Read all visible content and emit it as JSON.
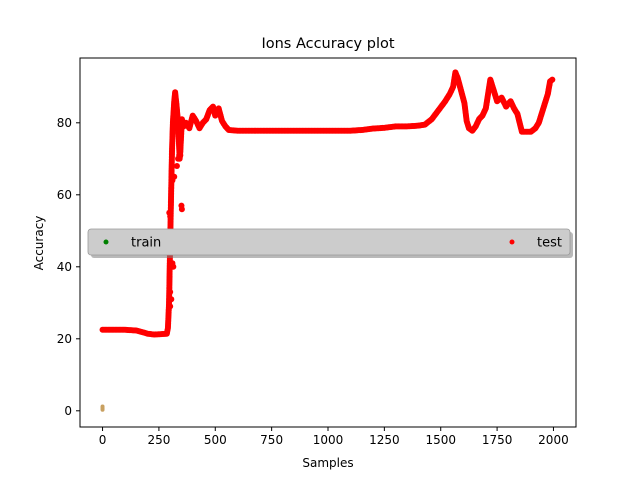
{
  "chart_data": {
    "type": "scatter",
    "title": "Ions Accuracy plot",
    "xlabel": "Samples",
    "ylabel": "Accuracy",
    "xlim": [
      -100,
      2100
    ],
    "ylim": [
      -4.5,
      98
    ],
    "xticks": [
      0,
      250,
      500,
      750,
      1000,
      1250,
      1500,
      1750,
      2000
    ],
    "yticks": [
      0,
      20,
      40,
      60,
      80
    ],
    "grid": false,
    "legend": {
      "placement": "center",
      "entries": [
        "train",
        "test"
      ]
    },
    "series": [
      {
        "name": "train",
        "color": "#008000",
        "points": [
          [
            0,
            0.3
          ],
          [
            0,
            0.6
          ],
          [
            0,
            0.9
          ],
          [
            0,
            1.2
          ]
        ]
      },
      {
        "name": "test",
        "color": "#ff0000",
        "curve": [
          [
            0,
            22.5
          ],
          [
            50,
            22.5
          ],
          [
            100,
            22.5
          ],
          [
            150,
            22.3
          ],
          [
            180,
            21.8
          ],
          [
            200,
            21.4
          ],
          [
            230,
            21.2
          ],
          [
            260,
            21.3
          ],
          [
            285,
            21.4
          ],
          [
            290,
            23
          ],
          [
            295,
            30
          ],
          [
            300,
            47
          ],
          [
            305,
            63
          ],
          [
            308,
            72
          ],
          [
            312,
            80
          ],
          [
            318,
            86
          ],
          [
            322,
            88.5
          ],
          [
            328,
            85
          ],
          [
            335,
            80
          ],
          [
            342,
            70
          ],
          [
            345,
            72
          ],
          [
            352,
            81
          ],
          [
            360,
            79
          ],
          [
            370,
            80
          ],
          [
            385,
            78.5
          ],
          [
            400,
            82
          ],
          [
            415,
            80.5
          ],
          [
            430,
            78.5
          ],
          [
            445,
            80
          ],
          [
            460,
            81
          ],
          [
            475,
            83.5
          ],
          [
            490,
            84.5
          ],
          [
            500,
            82
          ],
          [
            515,
            84
          ],
          [
            530,
            80.5
          ],
          [
            545,
            79
          ],
          [
            560,
            78
          ],
          [
            600,
            77.8
          ],
          [
            700,
            77.8
          ],
          [
            800,
            77.8
          ],
          [
            900,
            77.8
          ],
          [
            1000,
            77.8
          ],
          [
            1100,
            77.8
          ],
          [
            1150,
            78
          ],
          [
            1200,
            78.4
          ],
          [
            1250,
            78.6
          ],
          [
            1300,
            79
          ],
          [
            1350,
            79
          ],
          [
            1400,
            79.2
          ],
          [
            1430,
            79.5
          ],
          [
            1460,
            81
          ],
          [
            1490,
            83.5
          ],
          [
            1520,
            86
          ],
          [
            1540,
            88
          ],
          [
            1555,
            90
          ],
          [
            1565,
            94
          ],
          [
            1575,
            92.5
          ],
          [
            1590,
            89
          ],
          [
            1605,
            85.5
          ],
          [
            1615,
            80.5
          ],
          [
            1625,
            78.5
          ],
          [
            1640,
            77.8
          ],
          [
            1655,
            79
          ],
          [
            1670,
            81
          ],
          [
            1685,
            82
          ],
          [
            1700,
            84
          ],
          [
            1710,
            88
          ],
          [
            1720,
            92
          ],
          [
            1735,
            89
          ],
          [
            1750,
            86
          ],
          [
            1770,
            87
          ],
          [
            1790,
            84.5
          ],
          [
            1810,
            86
          ],
          [
            1825,
            84
          ],
          [
            1840,
            82.5
          ],
          [
            1850,
            80
          ],
          [
            1860,
            77.5
          ],
          [
            1880,
            77.5
          ],
          [
            1900,
            77.5
          ],
          [
            1920,
            78.5
          ],
          [
            1935,
            80
          ],
          [
            1950,
            83
          ],
          [
            1965,
            86
          ],
          [
            1975,
            88
          ],
          [
            1985,
            91.5
          ],
          [
            1995,
            92
          ]
        ],
        "extra_points": [
          [
            296,
            55
          ],
          [
            300,
            54
          ],
          [
            305,
            41
          ],
          [
            310,
            41
          ],
          [
            314,
            40
          ],
          [
            300,
            33
          ],
          [
            305,
            31
          ],
          [
            300,
            29
          ],
          [
            310,
            64
          ],
          [
            318,
            65
          ],
          [
            330,
            68
          ],
          [
            335,
            70
          ],
          [
            340,
            71
          ],
          [
            345,
            71
          ],
          [
            350,
            57
          ],
          [
            352,
            56
          ]
        ]
      }
    ]
  }
}
